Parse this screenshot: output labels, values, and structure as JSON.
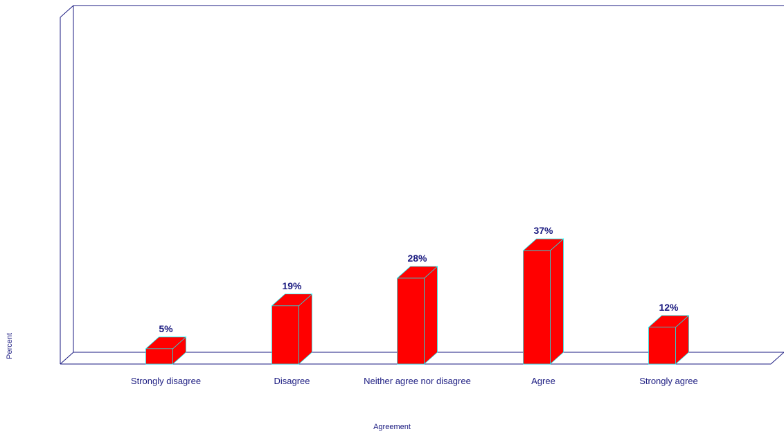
{
  "chart_data": {
    "type": "bar",
    "categories": [
      "Strongly disagree",
      "Disagree",
      "Neither agree nor disagree",
      "Agree",
      "Strongly agree"
    ],
    "values": [
      5,
      19,
      28,
      37,
      12
    ],
    "value_labels": [
      "5%",
      "19%",
      "28%",
      "37%",
      "12%"
    ],
    "xlabel": "Agreement",
    "ylabel": "Percent",
    "ylim": [
      0,
      100
    ],
    "grid": false,
    "style": "3d",
    "bar_color": "#ff0000",
    "axis_color": "#1a1a80",
    "edge_color": "#00ffff"
  }
}
